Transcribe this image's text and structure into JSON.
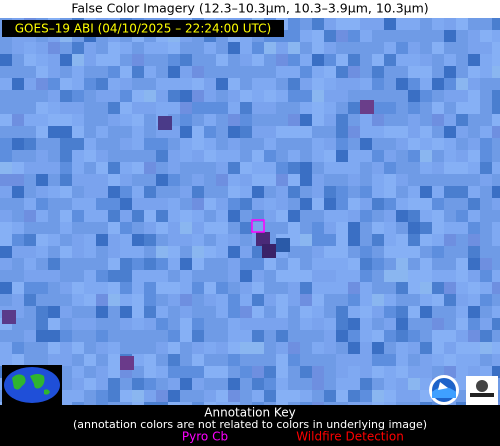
{
  "header": {
    "title": "False Color Imagery (12.3–10.3µm, 10.3–3.9µm, 10.3µm)",
    "satellite_label": "GOES–19 ABI (04/10/2025 – 22:24:00 UTC)"
  },
  "annotation_key": {
    "title": "Annotation Key",
    "note": "(annotation colors are not related to colors in underlying image)",
    "legend": [
      {
        "label": "Pyro Cb",
        "color": "#ff00ff"
      },
      {
        "label": "Wildfire Detection",
        "color": "#ff0000"
      }
    ]
  }
}
